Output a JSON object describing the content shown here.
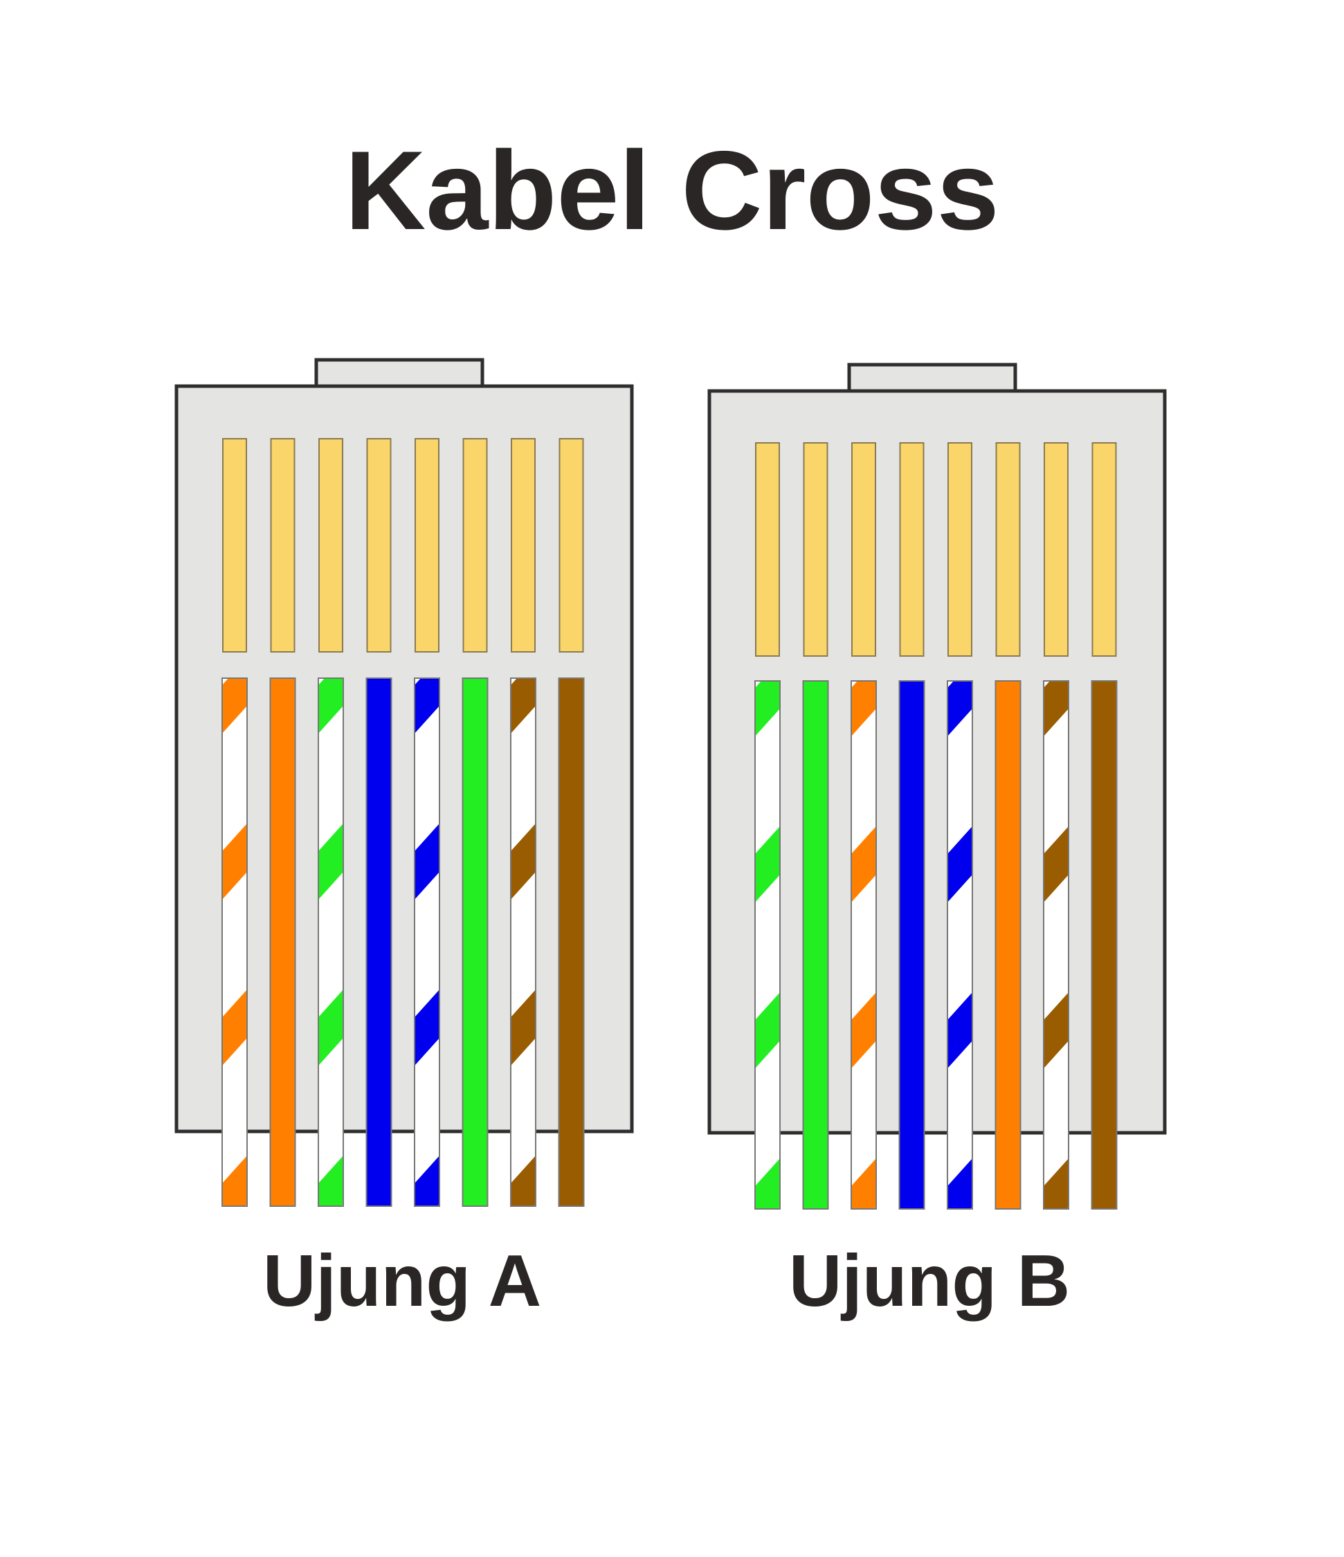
{
  "title": "Kabel Cross",
  "connectors": [
    {
      "label": "Ujung A",
      "wires": [
        {
          "color": "#ff8000",
          "striped": true
        },
        {
          "color": "#ff8000",
          "striped": false
        },
        {
          "color": "#22ee22",
          "striped": true
        },
        {
          "color": "#0000ee",
          "striped": false
        },
        {
          "color": "#0000ee",
          "striped": true
        },
        {
          "color": "#22ee22",
          "striped": false
        },
        {
          "color": "#9a5c00",
          "striped": true
        },
        {
          "color": "#9a5c00",
          "striped": false
        }
      ]
    },
    {
      "label": "Ujung B",
      "wires": [
        {
          "color": "#22ee22",
          "striped": true
        },
        {
          "color": "#22ee22",
          "striped": false
        },
        {
          "color": "#ff8000",
          "striped": true
        },
        {
          "color": "#0000ee",
          "striped": false
        },
        {
          "color": "#0000ee",
          "striped": true
        },
        {
          "color": "#ff8000",
          "striped": false
        },
        {
          "color": "#9a5c00",
          "striped": true
        },
        {
          "color": "#9a5c00",
          "striped": false
        }
      ]
    }
  ],
  "colors": {
    "text": "#2b2626",
    "body": "#e4e4e2",
    "outline": "#2e2e2e",
    "pin": "#f9d56a",
    "stripe_white": "#ffffff"
  }
}
